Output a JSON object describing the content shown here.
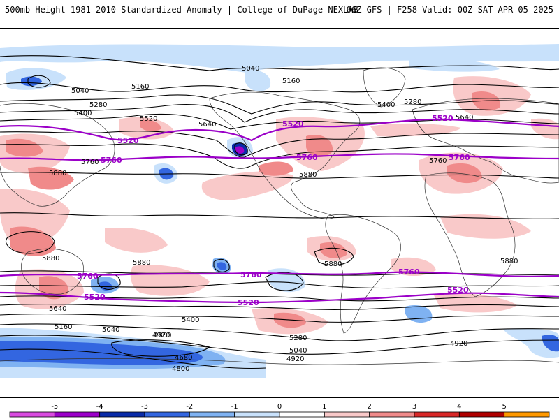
{
  "header": {
    "title": "500mb Height 1981–2010 Standardized Anomaly | College of DuPage NEXLAB",
    "run_info": "06Z GFS | F258 Valid: 00Z SAT APR 05 2025"
  },
  "colors": {
    "background": "#ffffff",
    "land_outline": "#333333",
    "contour": "#000000",
    "key_contour": "#9b00c8",
    "anom_pos_1": "#f9c9c9",
    "anom_pos_2": "#f08a8a",
    "anom_pos_3": "#d92828",
    "anom_neg_1": "#c8e1fb",
    "anom_neg_2": "#7fb2f2",
    "anom_neg_3": "#3366e0",
    "anom_neg_4": "#0a2ba8",
    "anom_neg_5": "#9b00c8"
  },
  "contour_labels_black": [
    "5040",
    "5160",
    "5280",
    "5400",
    "5520",
    "5640",
    "5760",
    "5880",
    "5040",
    "5160",
    "5280",
    "5400",
    "5640",
    "5760",
    "5880",
    "4920",
    "4800",
    "4680",
    "4800",
    "5040",
    "4920",
    "5160",
    "5280",
    "5400",
    "5640",
    "5040",
    "4920",
    "5880",
    "5880",
    "5880",
    "5880"
  ],
  "contour_labels_purple": [
    "5520",
    "5760",
    "5520",
    "5760",
    "5520",
    "5760",
    "5760",
    "5520",
    "5760",
    "5520",
    "5760",
    "5520"
  ],
  "colorbar": {
    "ticks": [
      "-5",
      "-4",
      "-3",
      "-2",
      "-1",
      "0",
      "1",
      "2",
      "3",
      "4",
      "5"
    ],
    "segment_colors": [
      "#d94be0",
      "#9b00c8",
      "#0a2ba8",
      "#3366e0",
      "#7fb2f2",
      "#c8e1fb",
      "#ffffff",
      "#f9c9c9",
      "#f08a8a",
      "#d92828",
      "#b00000",
      "#ff9900"
    ]
  }
}
